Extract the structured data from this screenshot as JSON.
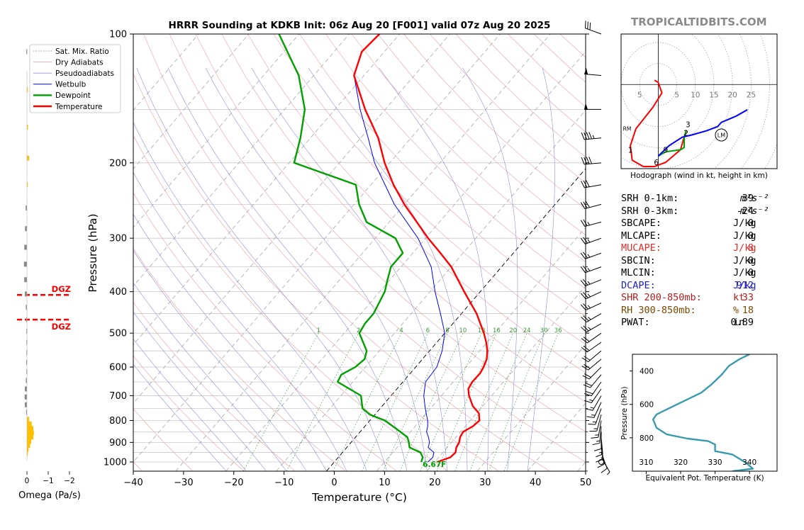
{
  "brand": "TROPICALTIDBITS.COM",
  "colors": {
    "temperature": "#ff0000",
    "dewpoint": "#00a000",
    "wetbulb": "#0000ff",
    "thetae": "#3a9aae",
    "omega_up": "#ffc000",
    "omega_down": "#888888",
    "dgz": "#ff0000",
    "dcape": "#1c1cd4",
    "mucape": "#e03030",
    "shr": "#b02020",
    "rh": "#7a4a00",
    "hodo_low": "#ff0000",
    "hodo_mid": "#00a000",
    "hodo_high": "#0000ff"
  },
  "chart_data": [
    {
      "type": "skew-t",
      "title": "HRRR Sounding at KDKB Init: 06z Aug 20 [F001] valid 07z Aug 20 2025",
      "xlabel": "Temperature (°C)",
      "ylabel": "Pressure (hPa)",
      "xlim": [
        -40,
        50
      ],
      "ylim": [
        1050,
        100
      ],
      "x_ticks": [
        "−40",
        "−30",
        "−20",
        "−10",
        "0",
        "10",
        "20",
        "30",
        "40",
        "50"
      ],
      "y_ticks": [
        "100",
        "200",
        "300",
        "400",
        "500",
        "600",
        "700",
        "800",
        "900",
        "1000"
      ],
      "legend": [
        "Sat. Mix. Ratio",
        "Dry Adiabats",
        "Pseudoadiabats",
        "Wetbulb",
        "Dewpoint",
        "Temperature"
      ],
      "legend_position": "top-left",
      "mixing_ratio_labels": [
        "1",
        "2",
        "4",
        "6",
        "8",
        "10",
        "13",
        "16",
        "20",
        "24",
        "30",
        "36"
      ],
      "surface_label": "6.67F",
      "temperature": [
        [
          1000,
          20.5
        ],
        [
          975,
          22.3
        ],
        [
          950,
          22.5
        ],
        [
          925,
          21.8
        ],
        [
          900,
          21.5
        ],
        [
          875,
          20.8
        ],
        [
          850,
          20.5
        ],
        [
          825,
          21.5
        ],
        [
          800,
          21.8
        ],
        [
          770,
          20.5
        ],
        [
          740,
          18
        ],
        [
          700,
          15.5
        ],
        [
          675,
          14.2
        ],
        [
          650,
          13.8
        ],
        [
          620,
          13.9
        ],
        [
          600,
          13.5
        ],
        [
          575,
          12.8
        ],
        [
          550,
          11.5
        ],
        [
          525,
          9.8
        ],
        [
          500,
          7.8
        ],
        [
          450,
          3
        ],
        [
          400,
          -3.2
        ],
        [
          350,
          -10
        ],
        [
          325,
          -14.5
        ],
        [
          300,
          -19.5
        ],
        [
          275,
          -24.5
        ],
        [
          250,
          -30
        ],
        [
          225,
          -35.5
        ],
        [
          200,
          -41
        ],
        [
          175,
          -46.5
        ],
        [
          150,
          -54
        ],
        [
          125,
          -62
        ],
        [
          110,
          -64.5
        ],
        [
          100,
          -64
        ]
      ],
      "dewpoint": [
        [
          1000,
          17.3
        ],
        [
          975,
          16.8
        ],
        [
          950,
          15.5
        ],
        [
          925,
          12.5
        ],
        [
          900,
          11.5
        ],
        [
          875,
          10.3
        ],
        [
          850,
          8
        ],
        [
          800,
          3
        ],
        [
          775,
          -1
        ],
        [
          750,
          -3.5
        ],
        [
          700,
          -6
        ],
        [
          650,
          -13
        ],
        [
          625,
          -13.5
        ],
        [
          600,
          -12
        ],
        [
          575,
          -11.5
        ],
        [
          550,
          -12.5
        ],
        [
          500,
          -17
        ],
        [
          475,
          -17.5
        ],
        [
          450,
          -17.5
        ],
        [
          400,
          -19
        ],
        [
          375,
          -20.5
        ],
        [
          350,
          -22
        ],
        [
          325,
          -22
        ],
        [
          300,
          -26
        ],
        [
          275,
          -34.5
        ],
        [
          250,
          -39
        ],
        [
          225,
          -43
        ],
        [
          200,
          -59
        ],
        [
          175,
          -62
        ],
        [
          150,
          -66
        ],
        [
          125,
          -73
        ],
        [
          100,
          -84
        ]
      ],
      "wetbulb": [
        [
          1000,
          18.6
        ],
        [
          975,
          18.8
        ],
        [
          950,
          18.2
        ],
        [
          925,
          16.2
        ],
        [
          900,
          15.6
        ],
        [
          875,
          14.5
        ],
        [
          850,
          13.2
        ],
        [
          825,
          12.5
        ],
        [
          800,
          11.5
        ],
        [
          770,
          10
        ],
        [
          740,
          8.5
        ],
        [
          700,
          6.5
        ],
        [
          650,
          4.5
        ],
        [
          600,
          4.2
        ],
        [
          550,
          2.5
        ],
        [
          500,
          0
        ],
        [
          450,
          -4.2
        ],
        [
          400,
          -9
        ],
        [
          350,
          -14
        ],
        [
          300,
          -21.5
        ],
        [
          250,
          -32
        ],
        [
          200,
          -43
        ],
        [
          175,
          -48.5
        ],
        [
          150,
          -55
        ],
        [
          125,
          -62
        ],
        [
          110,
          -64.5
        ]
      ],
      "omega": [
        [
          110,
          -0.05
        ],
        [
          135,
          0.05
        ],
        [
          165,
          0.1
        ],
        [
          195,
          0.2
        ],
        [
          225,
          0.05
        ],
        [
          255,
          -0.12
        ],
        [
          285,
          -0.18
        ],
        [
          315,
          -0.25
        ],
        [
          345,
          -0.28
        ],
        [
          375,
          -0.25
        ],
        [
          405,
          -0.2
        ],
        [
          435,
          -0.1
        ],
        [
          465,
          -0.08
        ],
        [
          495,
          -0.06
        ],
        [
          525,
          -0.05
        ],
        [
          555,
          -0.05
        ],
        [
          585,
          -0.06
        ],
        [
          615,
          -0.05
        ],
        [
          645,
          -0.1
        ],
        [
          675,
          -0.2
        ],
        [
          705,
          -0.22
        ],
        [
          735,
          -0.2
        ],
        [
          765,
          -0.08
        ],
        [
          795,
          0.2
        ],
        [
          815,
          0.45
        ],
        [
          835,
          0.6
        ],
        [
          855,
          0.65
        ],
        [
          875,
          0.6
        ],
        [
          895,
          0.4
        ],
        [
          915,
          0.3
        ],
        [
          935,
          0.15
        ],
        [
          955,
          0.05
        ]
      ],
      "omega_label": "Omega (Pa/s)",
      "omega_ticks": [
        "0",
        "−1",
        "−2"
      ],
      "dgz": [
        {
          "p": 407,
          "label": "DGZ"
        },
        {
          "p": 465,
          "label": "DGZ"
        }
      ],
      "wind_barbs": [
        [
          1000,
          0,
          0
        ],
        [
          975,
          150,
          7
        ],
        [
          950,
          160,
          8
        ],
        [
          925,
          170,
          10
        ],
        [
          900,
          175,
          12
        ],
        [
          875,
          175,
          13
        ],
        [
          850,
          180,
          12
        ],
        [
          825,
          185,
          14
        ],
        [
          800,
          190,
          15
        ],
        [
          775,
          195,
          15
        ],
        [
          750,
          200,
          15
        ],
        [
          725,
          205,
          17
        ],
        [
          700,
          210,
          17
        ],
        [
          675,
          215,
          17
        ],
        [
          650,
          215,
          19
        ],
        [
          625,
          220,
          19
        ],
        [
          600,
          225,
          19
        ],
        [
          575,
          230,
          20
        ],
        [
          550,
          230,
          21
        ],
        [
          525,
          235,
          22
        ],
        [
          500,
          235,
          22
        ],
        [
          475,
          240,
          24
        ],
        [
          450,
          240,
          24
        ],
        [
          425,
          245,
          25
        ],
        [
          400,
          245,
          25
        ],
        [
          375,
          248,
          24
        ],
        [
          350,
          250,
          24
        ],
        [
          325,
          250,
          23
        ],
        [
          300,
          250,
          25
        ],
        [
          275,
          255,
          27
        ],
        [
          250,
          255,
          30
        ],
        [
          225,
          260,
          32
        ],
        [
          200,
          265,
          40
        ],
        [
          175,
          265,
          45
        ],
        [
          150,
          270,
          50
        ],
        [
          125,
          275,
          48
        ],
        [
          100,
          290,
          30
        ]
      ]
    },
    {
      "type": "hodograph",
      "title": "Hodograph (wind in kt, height in km)",
      "xlim": [
        -10,
        32
      ],
      "ylim": [
        -20,
        12
      ],
      "ring_labels": [
        "5",
        "5",
        "10",
        "15",
        "20",
        "25"
      ],
      "height_labels": [
        {
          "u": -7.5,
          "v": -15.5,
          "label": "1"
        },
        {
          "u": 7.5,
          "v": -11.5,
          "label": "2"
        },
        {
          "u": 8,
          "v": -9.5,
          "label": "3"
        },
        {
          "u": -0.5,
          "v": -18.5,
          "label": "6"
        },
        {
          "u": 2,
          "v": -15.5,
          "label": "9"
        }
      ],
      "markers": [
        {
          "u": -8,
          "v": -10.5,
          "label": "RM"
        },
        {
          "u": 17,
          "v": -12,
          "label": "LM"
        }
      ],
      "trace_low": [
        [
          -1,
          1
        ],
        [
          0,
          0.5
        ],
        [
          1,
          -2
        ],
        [
          -1.5,
          -5.5
        ],
        [
          -6,
          -10.5
        ],
        [
          -7.5,
          -14.5
        ],
        [
          -7,
          -18
        ],
        [
          -4,
          -19.5
        ],
        [
          -1,
          -19.5
        ],
        [
          2,
          -18.5
        ],
        [
          4,
          -17
        ],
        [
          6,
          -15.5
        ],
        [
          6.5,
          -14
        ],
        [
          7,
          -12.5
        ],
        [
          7.5,
          -11
        ]
      ],
      "trace_mid": [
        [
          7.5,
          -11
        ],
        [
          7,
          -12.5
        ],
        [
          7,
          -15
        ],
        [
          6,
          -15.5
        ],
        [
          2,
          -16
        ],
        [
          0,
          -17
        ]
      ],
      "trace_high": [
        [
          0,
          -17
        ],
        [
          3,
          -14.5
        ],
        [
          6.5,
          -12.5
        ],
        [
          9,
          -12
        ],
        [
          13,
          -11
        ],
        [
          16,
          -10
        ],
        [
          17,
          -9
        ],
        [
          21,
          -7.5
        ],
        [
          24,
          -6
        ]
      ]
    },
    {
      "type": "line",
      "xlabel": "Equivalent Pot. Temperature (K)",
      "ylabel": "Pressure (hPa)",
      "xlim": [
        306,
        348
      ],
      "ylim": [
        1000,
        300
      ],
      "x_ticks": [
        "310",
        "320",
        "330",
        "340"
      ],
      "y_ticks": [
        "400",
        "600",
        "800"
      ],
      "series": [
        {
          "values": [
            [
              340,
              300
            ],
            [
              337,
              330
            ],
            [
              334,
              370
            ],
            [
              332,
              420
            ],
            [
              329,
              480
            ],
            [
              326,
              530
            ],
            [
              322,
              570
            ],
            [
              319,
              600
            ],
            [
              315,
              640
            ],
            [
              313,
              660
            ],
            [
              312,
              690
            ],
            [
              313,
              740
            ],
            [
              316,
              780
            ],
            [
              322,
              805
            ],
            [
              328,
              820
            ],
            [
              330,
              840
            ],
            [
              330,
              880
            ],
            [
              335,
              900
            ],
            [
              339,
              950
            ],
            [
              341,
              985
            ],
            [
              335,
              1000
            ]
          ]
        }
      ]
    }
  ],
  "stats": [
    {
      "label": "SRH 0-1km:",
      "value": "39",
      "unit": "m²s⁻²",
      "sup": true,
      "color": "#000000"
    },
    {
      "label": "SRH 0-3km:",
      "value": "-24",
      "unit": "m²s⁻²",
      "sup": true,
      "color": "#000000"
    },
    {
      "label": "SBCAPE:",
      "value": "0",
      "unit": "J/kg",
      "color": "#000000"
    },
    {
      "label": "MLCAPE:",
      "value": "0",
      "unit": "J/kg",
      "color": "#000000"
    },
    {
      "label": "MUCAPE:",
      "value": "8",
      "unit": "J/kg",
      "color": "#e03030"
    },
    {
      "label": "SBCIN:",
      "value": "0",
      "unit": "J/kg",
      "color": "#000000"
    },
    {
      "label": "MLCIN:",
      "value": "0",
      "unit": "J/kg",
      "color": "#000000"
    },
    {
      "label": "DCAPE:",
      "value": "912",
      "unit": "J/kg",
      "color": "#1c1cd4"
    },
    {
      "label": "SHR 200-850mb:",
      "value": "33",
      "unit": "kt",
      "color": "#b02020"
    },
    {
      "label": "RH 300-850mb:",
      "value": "18",
      "unit": "%",
      "color": "#7a4a00"
    },
    {
      "label": "PWAT:",
      "value": "0.89",
      "unit": "in",
      "color": "#000000"
    }
  ]
}
